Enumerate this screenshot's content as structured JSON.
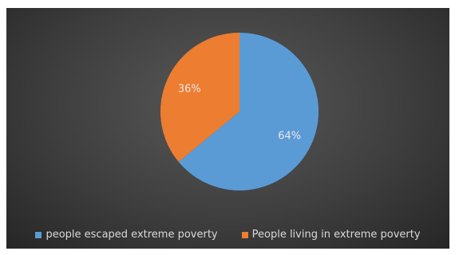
{
  "chart_data": {
    "type": "pie",
    "title": "",
    "series": [
      {
        "name": "people escaped extreme poverty",
        "value": 64,
        "label": "64%",
        "color": "#5b9bd5"
      },
      {
        "name": "People living in extreme poverty",
        "value": 36,
        "label": "36%",
        "color": "#ed7d31"
      }
    ],
    "start_angle": "12 o'clock, clockwise",
    "legend_position": "bottom",
    "label_color": "#e8e8e8",
    "background": "#404040"
  }
}
